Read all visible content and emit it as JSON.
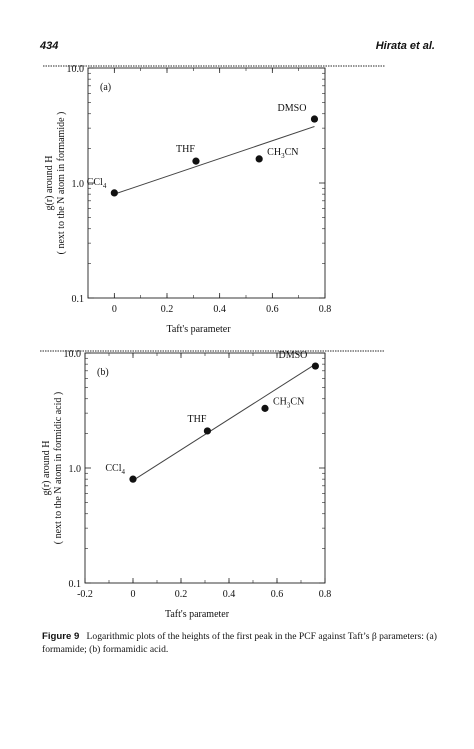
{
  "header": {
    "page_number": "434",
    "running_title": "Hirata et al."
  },
  "chart_data": [
    {
      "type": "scatter",
      "panel_label": "(a)",
      "xlabel": "Taft's parameter",
      "ylabel_line1": "g(r) around H",
      "ylabel_line2": "( next to the N atom in formamide )",
      "xlim": [
        -0.1,
        0.8
      ],
      "ylim": [
        0.1,
        10.0
      ],
      "yscale": "log",
      "xticks": [
        0,
        0.2,
        0.4,
        0.6,
        0.8
      ],
      "xtick_labels": [
        "0",
        "0.2",
        "0.4",
        "0.6",
        "0.8"
      ],
      "yticks": [
        0.1,
        1.0,
        10.0
      ],
      "ytick_labels": [
        "0.1",
        "1.0",
        "10.0"
      ],
      "points": [
        {
          "label": "CCl",
          "sub": "4",
          "suffix": "",
          "x": 0.0,
          "y": 0.82
        },
        {
          "label": "THF",
          "sub": "",
          "suffix": "",
          "x": 0.31,
          "y": 1.55
        },
        {
          "label": "CH",
          "sub": "3",
          "suffix": "CN",
          "x": 0.55,
          "y": 1.62
        },
        {
          "label": "DMSO",
          "sub": "",
          "suffix": "",
          "x": 0.76,
          "y": 3.6
        }
      ],
      "fit_line": {
        "x": [
          0.0,
          0.76
        ],
        "y": [
          0.8,
          3.1
        ]
      }
    },
    {
      "type": "scatter",
      "panel_label": "(b)",
      "xlabel": "Taft's parameter",
      "ylabel_line1": "g(r) around H",
      "ylabel_line2": "( next to the N atom in formidic acid )",
      "xlim": [
        -0.2,
        0.8
      ],
      "ylim": [
        0.1,
        10.0
      ],
      "yscale": "log",
      "xticks": [
        -0.2,
        0,
        0.2,
        0.4,
        0.6,
        0.8
      ],
      "xtick_labels": [
        "-0.2",
        "0",
        "0.2",
        "0.4",
        "0.6",
        "0.8"
      ],
      "yticks": [
        0.1,
        1.0,
        10.0
      ],
      "ytick_labels": [
        "0.1",
        "1.0",
        "10.0"
      ],
      "points": [
        {
          "label": "CCl",
          "sub": "4",
          "suffix": "",
          "x": 0.0,
          "y": 0.8
        },
        {
          "label": "THF",
          "sub": "",
          "suffix": "",
          "x": 0.31,
          "y": 2.1
        },
        {
          "label": "CH",
          "sub": "3",
          "suffix": "CN",
          "x": 0.55,
          "y": 3.3
        },
        {
          "label": "DMSO",
          "sub": "",
          "suffix": "",
          "x": 0.76,
          "y": 7.7
        }
      ],
      "fit_line": {
        "x": [
          0.0,
          0.76
        ],
        "y": [
          0.78,
          8.0
        ]
      }
    }
  ],
  "caption": {
    "label": "Figure 9",
    "text": "Logarithmic plots of the heights of the first peak in the PCF against Taft’s β parameters: (a) formamide; (b) formamidic acid."
  }
}
